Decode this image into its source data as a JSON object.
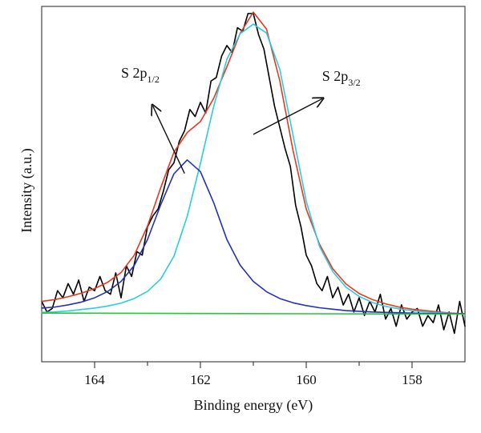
{
  "chart_data": {
    "type": "line",
    "title": "",
    "xlabel": "Binding energy (eV)",
    "ylabel": "Intensity (a.u.)",
    "xlim": [
      165,
      157
    ],
    "ylim": [
      0,
      1
    ],
    "x_reversed": true,
    "grid": false,
    "x_ticks": [
      164,
      162,
      160,
      158
    ],
    "y_ticks_labeled": false,
    "annotations": [
      {
        "label": "S 2p",
        "subscript": "1/2",
        "arrow_from": [
          162.3,
          0.53
        ],
        "arrow_to": [
          162.9,
          0.72
        ],
        "label_anchor": [
          163.5,
          0.8
        ]
      },
      {
        "label": "S 2p",
        "subscript": "3/2",
        "arrow_from": [
          161.0,
          0.64
        ],
        "arrow_to": [
          159.7,
          0.74
        ],
        "label_anchor": [
          159.7,
          0.79
        ]
      }
    ],
    "series": [
      {
        "role": "raw",
        "color": "#000000",
        "x": [
          165.0,
          164.9,
          164.8,
          164.7,
          164.6,
          164.5,
          164.4,
          164.3,
          164.2,
          164.1,
          164.0,
          163.9,
          163.8,
          163.7,
          163.6,
          163.5,
          163.4,
          163.3,
          163.2,
          163.1,
          163.0,
          162.9,
          162.8,
          162.7,
          162.6,
          162.5,
          162.4,
          162.3,
          162.2,
          162.1,
          162.0,
          161.9,
          161.8,
          161.7,
          161.6,
          161.5,
          161.4,
          161.3,
          161.2,
          161.1,
          161.0,
          160.9,
          160.8,
          160.7,
          160.6,
          160.5,
          160.4,
          160.3,
          160.2,
          160.1,
          160.0,
          159.9,
          159.8,
          159.7,
          159.6,
          159.5,
          159.4,
          159.3,
          159.2,
          159.1,
          159.0,
          158.9,
          158.8,
          158.7,
          158.6,
          158.5,
          158.4,
          158.3,
          158.2,
          158.1,
          158.0,
          157.9,
          157.8,
          157.7,
          157.6,
          157.5,
          157.4,
          157.3,
          157.2,
          157.1,
          157.0
        ],
        "y": [
          0.17,
          0.14,
          0.15,
          0.2,
          0.18,
          0.22,
          0.19,
          0.23,
          0.17,
          0.21,
          0.2,
          0.24,
          0.2,
          0.19,
          0.25,
          0.18,
          0.27,
          0.24,
          0.31,
          0.3,
          0.38,
          0.41,
          0.43,
          0.48,
          0.54,
          0.56,
          0.62,
          0.65,
          0.71,
          0.69,
          0.73,
          0.7,
          0.79,
          0.8,
          0.86,
          0.89,
          0.87,
          0.94,
          0.93,
          0.98,
          0.98,
          0.92,
          0.88,
          0.8,
          0.72,
          0.66,
          0.6,
          0.55,
          0.44,
          0.38,
          0.3,
          0.27,
          0.22,
          0.2,
          0.24,
          0.18,
          0.21,
          0.16,
          0.19,
          0.14,
          0.18,
          0.13,
          0.17,
          0.14,
          0.19,
          0.12,
          0.15,
          0.1,
          0.16,
          0.12,
          0.14,
          0.15,
          0.1,
          0.13,
          0.11,
          0.16,
          0.09,
          0.14,
          0.08,
          0.17,
          0.1
        ]
      },
      {
        "role": "envelope",
        "color": "#e8371f",
        "x": [
          165.0,
          164.75,
          164.5,
          164.25,
          164.0,
          163.75,
          163.5,
          163.25,
          163.0,
          162.75,
          162.5,
          162.25,
          162.0,
          161.75,
          161.5,
          161.25,
          161.0,
          160.75,
          160.5,
          160.25,
          160.0,
          159.75,
          159.5,
          159.25,
          159.0,
          158.75,
          158.5,
          158.25,
          158.0,
          157.75,
          157.5,
          157.25,
          157.0
        ],
        "y": [
          0.17,
          0.175,
          0.183,
          0.193,
          0.206,
          0.224,
          0.251,
          0.3,
          0.382,
          0.49,
          0.59,
          0.645,
          0.676,
          0.741,
          0.83,
          0.924,
          0.984,
          0.936,
          0.791,
          0.595,
          0.43,
          0.331,
          0.262,
          0.219,
          0.192,
          0.175,
          0.163,
          0.154,
          0.148,
          0.144,
          0.14,
          0.137,
          0.135
        ]
      },
      {
        "role": "S 2p 3/2 component",
        "color": "#29cde0",
        "x": [
          165.0,
          164.75,
          164.5,
          164.25,
          164.0,
          163.75,
          163.5,
          163.25,
          163.0,
          162.75,
          162.5,
          162.25,
          162.0,
          161.75,
          161.5,
          161.25,
          161.0,
          160.75,
          160.5,
          160.25,
          160.0,
          159.75,
          159.5,
          159.25,
          159.0,
          158.75,
          158.5,
          158.25,
          158.0,
          157.75,
          157.5,
          157.25,
          157.0
        ],
        "y": [
          0.139,
          0.14,
          0.143,
          0.147,
          0.151,
          0.157,
          0.165,
          0.178,
          0.198,
          0.233,
          0.297,
          0.409,
          0.558,
          0.718,
          0.851,
          0.923,
          0.95,
          0.925,
          0.823,
          0.638,
          0.452,
          0.325,
          0.254,
          0.21,
          0.184,
          0.167,
          0.156,
          0.149,
          0.144,
          0.14,
          0.138,
          0.136,
          0.134
        ]
      },
      {
        "role": "S 2p 1/2 component",
        "color": "#2331b8",
        "x": [
          165.0,
          164.75,
          164.5,
          164.25,
          164.0,
          163.75,
          163.5,
          163.25,
          163.0,
          162.75,
          162.5,
          162.25,
          162.0,
          161.75,
          161.5,
          161.25,
          161.0,
          160.75,
          160.5,
          160.25,
          160.0,
          159.75,
          159.5,
          159.25,
          159.0,
          158.75,
          158.5,
          158.25,
          158.0,
          157.75,
          157.5,
          157.25,
          157.0
        ],
        "y": [
          0.151,
          0.154,
          0.16,
          0.168,
          0.18,
          0.198,
          0.226,
          0.271,
          0.344,
          0.442,
          0.529,
          0.568,
          0.535,
          0.448,
          0.344,
          0.272,
          0.226,
          0.197,
          0.178,
          0.166,
          0.158,
          0.152,
          0.148,
          0.144,
          0.142,
          0.14,
          0.139,
          0.138,
          0.137,
          0.136,
          0.136,
          0.135,
          0.135
        ]
      },
      {
        "role": "baseline",
        "color": "#28c53b",
        "x": [
          165.0,
          157.0
        ],
        "y": [
          0.137,
          0.134
        ]
      }
    ]
  }
}
